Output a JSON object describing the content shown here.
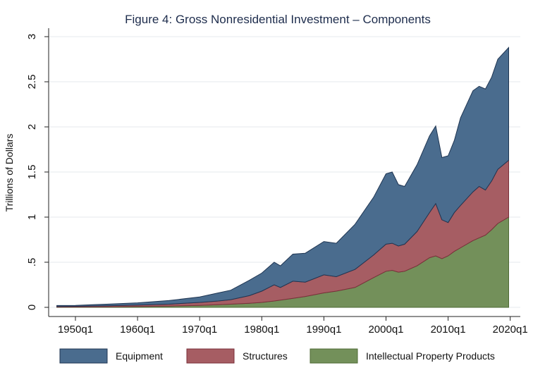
{
  "chart_data": {
    "type": "area",
    "stacked": true,
    "title": "Figure 4: Gross Nonresidential Investment – Components",
    "xlabel": "",
    "ylabel": "Trillions of Dollars",
    "xlim": [
      1947,
      2019.75
    ],
    "ylim": [
      0,
      3
    ],
    "x_ticks": [
      1950,
      1960,
      1970,
      1980,
      1990,
      2000,
      2010,
      2020
    ],
    "x_tick_labels": [
      "1950q1",
      "1960q1",
      "1970q1",
      "1980q1",
      "1990q1",
      "2000q1",
      "2010q1",
      "2020q1"
    ],
    "y_ticks": [
      0,
      0.5,
      1,
      1.5,
      2,
      2.5,
      3
    ],
    "y_tick_labels": [
      "0",
      ".5",
      "1",
      "1.5",
      "2",
      "2.5",
      "3"
    ],
    "grid": true,
    "legend_position": "bottom",
    "x": [
      1947,
      1950,
      1955,
      1960,
      1965,
      1970,
      1973,
      1975,
      1978,
      1980,
      1982,
      1983,
      1985,
      1987,
      1990,
      1992,
      1995,
      1998,
      2000,
      2001,
      2002,
      2003,
      2005,
      2007,
      2008,
      2009,
      2010,
      2011,
      2012,
      2014,
      2015,
      2016,
      2017,
      2018,
      2019.75
    ],
    "series": [
      {
        "name": "Intellectual Property Products",
        "color": "#73905a",
        "values": [
          0.003,
          0.004,
          0.006,
          0.009,
          0.014,
          0.022,
          0.03,
          0.035,
          0.045,
          0.055,
          0.07,
          0.08,
          0.1,
          0.12,
          0.16,
          0.18,
          0.22,
          0.33,
          0.4,
          0.41,
          0.39,
          0.4,
          0.46,
          0.55,
          0.57,
          0.54,
          0.57,
          0.62,
          0.66,
          0.74,
          0.77,
          0.8,
          0.86,
          0.93,
          1.0
        ]
      },
      {
        "name": "Structures",
        "color": "#a65d63",
        "values": [
          0.007,
          0.008,
          0.012,
          0.016,
          0.021,
          0.033,
          0.04,
          0.05,
          0.085,
          0.125,
          0.18,
          0.14,
          0.19,
          0.16,
          0.2,
          0.16,
          0.2,
          0.25,
          0.3,
          0.3,
          0.29,
          0.3,
          0.38,
          0.5,
          0.58,
          0.43,
          0.37,
          0.43,
          0.47,
          0.54,
          0.57,
          0.5,
          0.54,
          0.6,
          0.63
        ]
      },
      {
        "name": "Equipment",
        "color": "#4a6c8e",
        "values": [
          0.01,
          0.01,
          0.017,
          0.025,
          0.04,
          0.06,
          0.09,
          0.105,
          0.17,
          0.2,
          0.25,
          0.24,
          0.3,
          0.32,
          0.37,
          0.37,
          0.5,
          0.64,
          0.78,
          0.79,
          0.68,
          0.64,
          0.74,
          0.85,
          0.86,
          0.69,
          0.74,
          0.8,
          0.97,
          1.12,
          1.11,
          1.12,
          1.15,
          1.22,
          1.25
        ]
      }
    ],
    "legend": [
      "Equipment",
      "Structures",
      "Intellectual Property Products"
    ]
  }
}
